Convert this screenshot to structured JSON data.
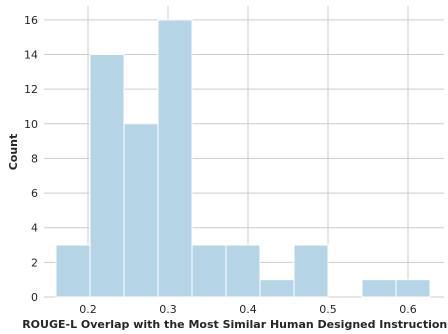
{
  "colors": {
    "bar_fill": "#b5d4e6",
    "bar_stroke": "#ffffff",
    "grid": "#cccccc",
    "background": "#ffffff"
  },
  "chart_data": {
    "type": "bar",
    "title": "",
    "xlabel": "ROUGE-L Overlap with the Most Similar Human Designed Instructions",
    "ylabel": "Count",
    "grid": true,
    "xlim": [
      0.145,
      0.645
    ],
    "ylim": [
      0,
      16.8
    ],
    "xticks": [
      0.2,
      0.3,
      0.4,
      0.5,
      0.6
    ],
    "xtick_labels": [
      "0.2",
      "0.3",
      "0.4",
      "0.5",
      "0.6"
    ],
    "yticks": [
      0,
      2,
      4,
      6,
      8,
      10,
      12,
      14,
      16
    ],
    "ytick_labels": [
      "0",
      "2",
      "4",
      "6",
      "8",
      "10",
      "12",
      "14",
      "16"
    ],
    "bin_edges": [
      0.16,
      0.2025,
      0.245,
      0.2875,
      0.33,
      0.3725,
      0.415,
      0.4575,
      0.5,
      0.5425,
      0.585,
      0.6275
    ],
    "values": [
      3,
      14,
      10,
      16,
      3,
      3,
      1,
      3,
      0,
      1,
      1
    ]
  }
}
